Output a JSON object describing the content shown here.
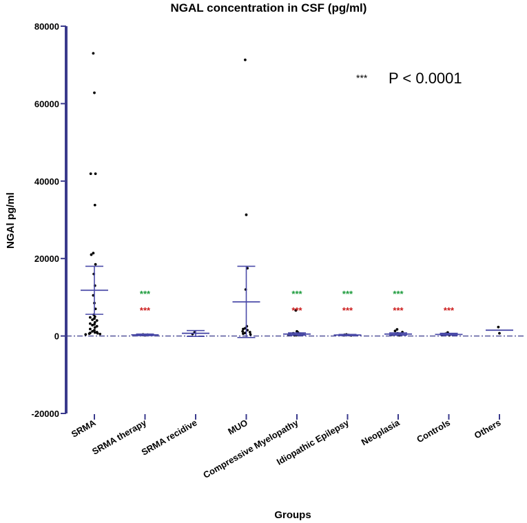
{
  "chart_data": {
    "type": "scatter",
    "title": "NGAL concentration in CSF (pg/ml)",
    "xlabel": "Groups",
    "ylabel": "NGAl pg/ml",
    "ylim": [
      -20000,
      80000
    ],
    "yticks": [
      -20000,
      0,
      20000,
      40000,
      60000,
      80000
    ],
    "ytick_labels": [
      "-20000",
      "0",
      "20000",
      "40000",
      "60000",
      "80000"
    ],
    "zero_line": true,
    "legend": {
      "stars": "***",
      "text": "P < 0.0001",
      "placement": "top-right"
    },
    "colors": {
      "axis": "#3a3a8c",
      "errorbar": "#4a4aa8",
      "green": "#1a9a3a",
      "red": "#cc1a1a",
      "point": "#000000"
    },
    "categories": [
      "SRMA",
      "SRMA therapy",
      "SRMA recidive",
      "MUO",
      "Compressive Myelopathy",
      "Idiopathic Epilepsy",
      "Neoplasia",
      "Controls",
      "Others"
    ],
    "groups": [
      {
        "name": "SRMA",
        "mean": 11800,
        "upper": 18000,
        "lower": 5600,
        "points": [
          73000,
          62800,
          41900,
          41900,
          33800,
          21400,
          21000,
          18500,
          16000,
          13000,
          10500,
          8500,
          7000,
          5500,
          5000,
          4800,
          4500,
          4200,
          4000,
          3500,
          3200,
          3000,
          2800,
          2500,
          2200,
          1800,
          1500,
          1200,
          1000,
          900,
          800,
          700,
          600,
          500,
          400
        ],
        "sig_green": "",
        "sig_red": ""
      },
      {
        "name": "SRMA therapy",
        "mean": 300,
        "upper": 500,
        "lower": 100,
        "points": [
          300,
          200,
          400,
          350,
          250
        ],
        "sig_green": "***",
        "sig_red": "***"
      },
      {
        "name": "SRMA recidive",
        "mean": 700,
        "upper": 1400,
        "lower": -100,
        "points": [
          900,
          500
        ],
        "sig_green": "",
        "sig_red": ""
      },
      {
        "name": "MUO",
        "mean": 8800,
        "upper": 18000,
        "lower": -400,
        "points": [
          71300,
          31300,
          17500,
          12000,
          2500,
          2000,
          1800,
          1500,
          1200,
          1000,
          800,
          600,
          400
        ],
        "sig_green": "",
        "sig_red": ""
      },
      {
        "name": "Compressive Myelopathy",
        "mean": 500,
        "upper": 800,
        "lower": 200,
        "points": [
          6600,
          1200,
          900,
          700,
          600,
          500,
          400,
          300,
          200,
          200
        ],
        "sig_green": "***",
        "sig_red": "***"
      },
      {
        "name": "Idiopathic Epilepsy",
        "mean": 250,
        "upper": 400,
        "lower": 100,
        "points": [
          400,
          300,
          250,
          200,
          150
        ],
        "sig_green": "***",
        "sig_red": "***"
      },
      {
        "name": "Neoplasia",
        "mean": 500,
        "upper": 800,
        "lower": 200,
        "points": [
          1700,
          1300,
          1000,
          700,
          500,
          400,
          300,
          200
        ],
        "sig_green": "***",
        "sig_red": "***"
      },
      {
        "name": "Controls",
        "mean": 400,
        "upper": 700,
        "lower": 200,
        "points": [
          900,
          600,
          400,
          300,
          200
        ],
        "sig_green": "",
        "sig_red": "***"
      },
      {
        "name": "Others",
        "mean": 1500,
        "upper": 1500,
        "lower": 1500,
        "points": [
          2300,
          700
        ],
        "sig_green": "",
        "sig_red": ""
      }
    ]
  }
}
